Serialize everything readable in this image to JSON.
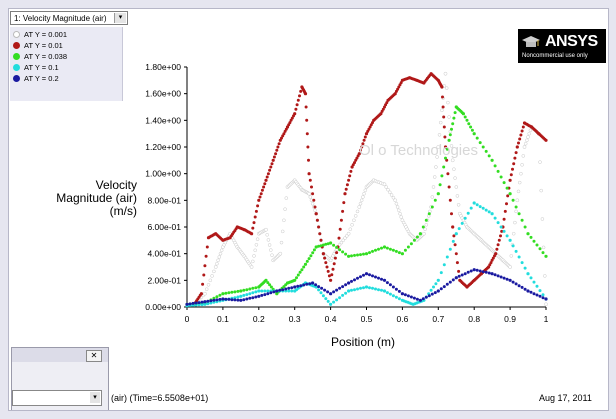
{
  "surface_selector": {
    "value": "1: Velocity Magnitude (air)",
    "arrow": "▾"
  },
  "legend": {
    "items": [
      {
        "label": "AT Y = 0.001",
        "color": "#ffffff"
      },
      {
        "label": "AT Y = 0.01",
        "color": "#b01818"
      },
      {
        "label": "AT Y = 0.038",
        "color": "#33dd22"
      },
      {
        "label": "AT Y = 0.1",
        "color": "#22dddd"
      },
      {
        "label": "AT Y = 0.2",
        "color": "#1a1aa0"
      }
    ]
  },
  "logo": {
    "brand": "ANSYS",
    "tagline": "Noncommercial use only"
  },
  "watermark": "Ol   o Technologies",
  "footer": {
    "status_text": "(air)   (Time=6.5508e+01)",
    "date": "Aug 17, 2011"
  },
  "dialog": {
    "close_symbol": "✕",
    "combo_arrow": "▾"
  },
  "chart_data": {
    "type": "scatter",
    "xlabel": "Position (m)",
    "ylabel": "Velocity Magnitude (air) (m/s)",
    "xlim": [
      0,
      1
    ],
    "ylim": [
      0,
      1.8
    ],
    "x_ticks": [
      "0",
      "0.1",
      "0.2",
      "0.3",
      "0.4",
      "0.5",
      "0.6",
      "0.7",
      "0.8",
      "0.9",
      "1"
    ],
    "y_ticks": [
      "0.00e+00",
      "2.00e-01",
      "4.00e-01",
      "6.00e-01",
      "8.00e-01",
      "1.00e+00",
      "1.20e+00",
      "1.40e+00",
      "1.60e+00",
      "1.80e+00"
    ],
    "grid": false,
    "legend_position": "top-left",
    "series": [
      {
        "name": "AT Y = 0.001",
        "color": "#ffffff",
        "x": [
          0.02,
          0.05,
          0.08,
          0.1,
          0.12,
          0.14,
          0.16,
          0.18,
          0.2,
          0.22,
          0.24,
          0.26,
          0.28,
          0.3,
          0.32,
          0.34,
          0.36,
          0.38,
          0.4,
          0.42,
          0.45,
          0.48,
          0.5,
          0.52,
          0.55,
          0.58,
          0.6,
          0.62,
          0.64,
          0.66,
          0.68,
          0.7,
          0.72,
          0.74,
          0.76,
          0.78,
          0.8,
          0.82,
          0.84,
          0.86,
          0.88,
          0.9,
          0.92,
          0.94,
          0.96,
          0.98,
          1.0
        ],
        "y": [
          0.02,
          0.1,
          0.3,
          0.45,
          0.55,
          0.45,
          0.38,
          0.3,
          0.55,
          0.58,
          0.35,
          0.4,
          0.9,
          0.95,
          0.88,
          0.85,
          0.7,
          0.4,
          0.35,
          0.45,
          0.55,
          0.75,
          0.9,
          0.95,
          0.92,
          0.8,
          0.65,
          0.55,
          0.5,
          0.55,
          0.75,
          1.2,
          1.75,
          1.1,
          0.7,
          0.6,
          0.55,
          0.5,
          0.45,
          0.4,
          0.35,
          0.3,
          0.8,
          1.2,
          1.35,
          1.3,
          0.02
        ]
      },
      {
        "name": "AT Y = 0.01",
        "color": "#b01818",
        "x": [
          0.02,
          0.04,
          0.06,
          0.08,
          0.1,
          0.12,
          0.14,
          0.16,
          0.18,
          0.2,
          0.22,
          0.24,
          0.26,
          0.28,
          0.3,
          0.32,
          0.33,
          0.34,
          0.36,
          0.38,
          0.4,
          0.42,
          0.44,
          0.46,
          0.48,
          0.5,
          0.52,
          0.54,
          0.56,
          0.58,
          0.6,
          0.62,
          0.64,
          0.66,
          0.68,
          0.7,
          0.71,
          0.72,
          0.74,
          0.76,
          0.78,
          0.8,
          0.82,
          0.84,
          0.86,
          0.88,
          0.9,
          0.92,
          0.94,
          0.96,
          0.98,
          1.0
        ],
        "y": [
          0.02,
          0.1,
          0.52,
          0.55,
          0.5,
          0.52,
          0.6,
          0.58,
          0.55,
          0.8,
          0.95,
          1.1,
          1.25,
          1.35,
          1.45,
          1.65,
          1.6,
          1.0,
          0.7,
          0.4,
          0.2,
          0.45,
          0.85,
          1.05,
          1.15,
          1.3,
          1.4,
          1.45,
          1.55,
          1.6,
          1.7,
          1.72,
          1.7,
          1.68,
          1.75,
          1.7,
          1.65,
          1.2,
          0.6,
          0.2,
          0.15,
          0.2,
          0.25,
          0.3,
          0.4,
          0.6,
          0.95,
          1.2,
          1.38,
          1.35,
          1.3,
          1.25
        ]
      },
      {
        "name": "AT Y = 0.038",
        "color": "#33dd22",
        "x": [
          0,
          0.05,
          0.1,
          0.15,
          0.2,
          0.22,
          0.25,
          0.28,
          0.3,
          0.33,
          0.36,
          0.4,
          0.45,
          0.5,
          0.55,
          0.6,
          0.65,
          0.7,
          0.73,
          0.75,
          0.77,
          0.8,
          0.85,
          0.9,
          0.95,
          1.0
        ],
        "y": [
          0.02,
          0.03,
          0.1,
          0.12,
          0.15,
          0.2,
          0.1,
          0.18,
          0.2,
          0.32,
          0.45,
          0.48,
          0.38,
          0.4,
          0.45,
          0.4,
          0.55,
          0.85,
          1.25,
          1.5,
          1.45,
          1.3,
          1.1,
          0.85,
          0.55,
          0.38
        ]
      },
      {
        "name": "AT Y = 0.1",
        "color": "#22dddd",
        "x": [
          0,
          0.05,
          0.1,
          0.15,
          0.2,
          0.25,
          0.3,
          0.33,
          0.36,
          0.4,
          0.45,
          0.5,
          0.55,
          0.6,
          0.63,
          0.66,
          0.7,
          0.75,
          0.8,
          0.85,
          0.9,
          0.95,
          1.0
        ],
        "y": [
          0.01,
          0.02,
          0.05,
          0.08,
          0.12,
          0.12,
          0.12,
          0.18,
          0.15,
          0.02,
          0.12,
          0.15,
          0.12,
          0.05,
          0.02,
          0.05,
          0.2,
          0.55,
          0.78,
          0.7,
          0.5,
          0.25,
          0.06
        ]
      },
      {
        "name": "AT Y = 0.2",
        "color": "#1a1aa0",
        "x": [
          0,
          0.05,
          0.1,
          0.15,
          0.2,
          0.25,
          0.3,
          0.35,
          0.4,
          0.45,
          0.5,
          0.55,
          0.6,
          0.65,
          0.7,
          0.75,
          0.8,
          0.85,
          0.9,
          0.95,
          1.0
        ],
        "y": [
          0.02,
          0.04,
          0.06,
          0.05,
          0.08,
          0.12,
          0.15,
          0.18,
          0.1,
          0.18,
          0.25,
          0.2,
          0.1,
          0.05,
          0.12,
          0.22,
          0.28,
          0.25,
          0.2,
          0.12,
          0.06
        ]
      }
    ]
  }
}
